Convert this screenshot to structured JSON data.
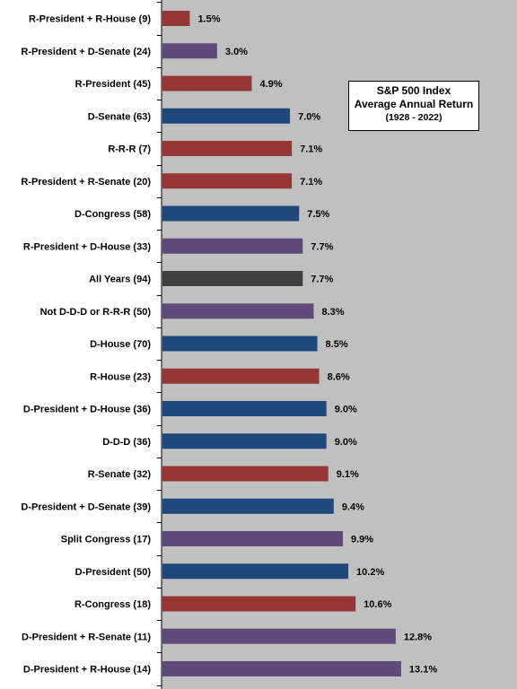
{
  "chart_data": {
    "type": "bar",
    "orientation": "horizontal",
    "title": "S&P 500 Index",
    "subtitle": "Average Annual Return",
    "period": "(1928 - 2022)",
    "xlim": [
      0,
      15
    ],
    "grid": false,
    "colors": {
      "R": "#953735",
      "D": "#1F497D",
      "split": "#604A7B",
      "all": "#404040",
      "plot_bg": "#C0C0C0"
    },
    "categories": [
      "R-President + R-House (9)",
      "R-President + D-Senate (24)",
      "R-President (45)",
      "D-Senate (63)",
      "R-R-R (7)",
      "R-President + R-Senate (20)",
      "D-Congress (58)",
      "R-President + D-House (33)",
      "All Years (94)",
      "Not D-D-D or R-R-R (50)",
      "D-House (70)",
      "R-House (23)",
      "D-President + D-House (36)",
      "D-D-D (36)",
      "R-Senate (32)",
      "D-President + D-Senate (39)",
      "Split Congress (17)",
      "D-President (50)",
      "R-Congress (18)",
      "D-President + R-Senate (11)",
      "D-President + R-House (14)"
    ],
    "values": [
      1.5,
      3.0,
      4.9,
      7.0,
      7.1,
      7.1,
      7.5,
      7.7,
      7.7,
      8.3,
      8.5,
      8.6,
      9.0,
      9.0,
      9.1,
      9.4,
      9.9,
      10.2,
      10.6,
      12.8,
      13.1
    ],
    "value_labels": [
      "1.5%",
      "3.0%",
      "4.9%",
      "7.0%",
      "7.1%",
      "7.1%",
      "7.5%",
      "7.7%",
      "7.7%",
      "8.3%",
      "8.5%",
      "8.6%",
      "9.0%",
      "9.0%",
      "9.1%",
      "9.4%",
      "9.9%",
      "10.2%",
      "10.6%",
      "12.8%",
      "13.1%"
    ],
    "bar_colors": [
      "R",
      "split",
      "R",
      "D",
      "R",
      "R",
      "D",
      "split",
      "all",
      "split",
      "D",
      "R",
      "D",
      "D",
      "R",
      "D",
      "split",
      "D",
      "R",
      "split",
      "split"
    ]
  }
}
